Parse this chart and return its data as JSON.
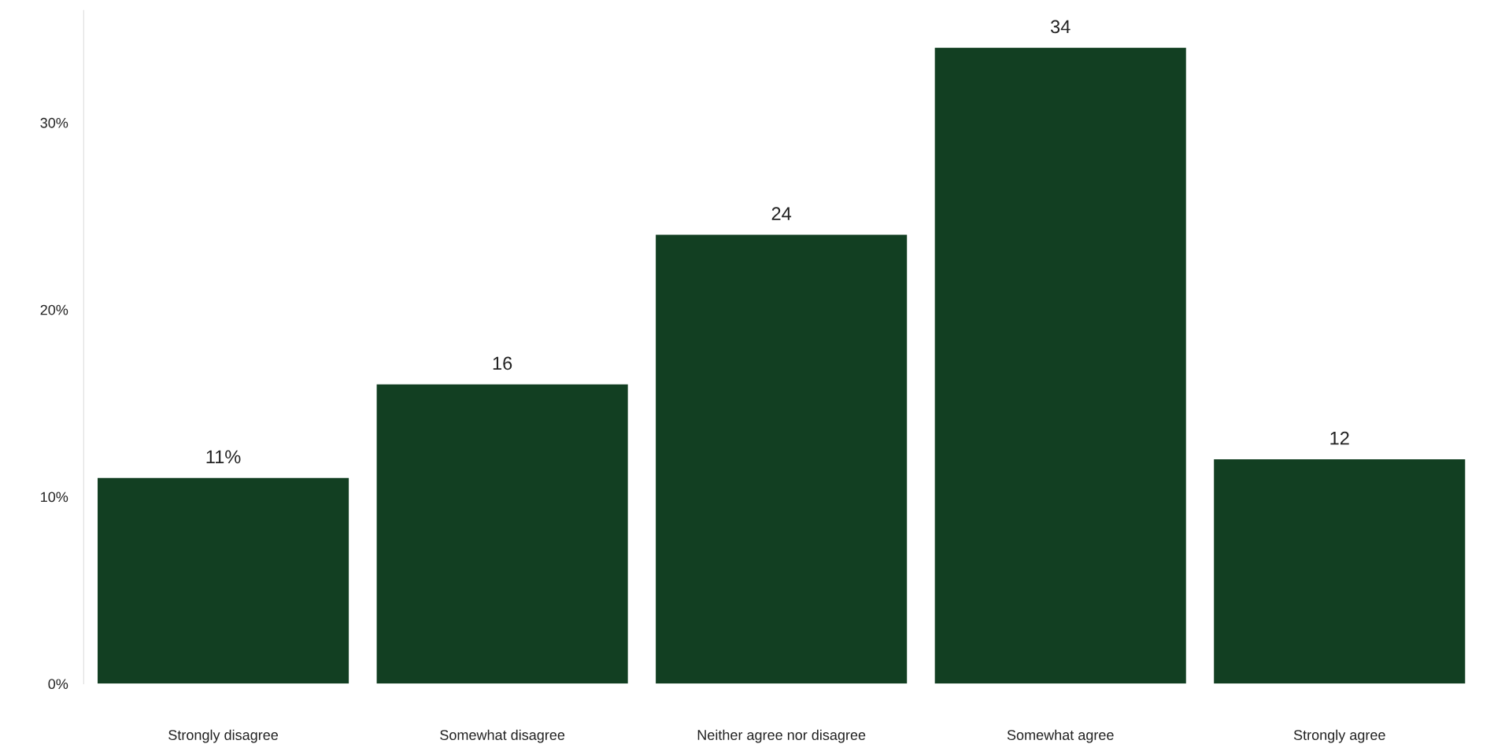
{
  "chart_data": {
    "type": "bar",
    "categories": [
      "Strongly disagree",
      "Somewhat disagree",
      "Neither agree nor disagree",
      "Somewhat agree",
      "Strongly agree"
    ],
    "values": [
      11,
      16,
      24,
      34,
      12
    ],
    "color": "#123f22",
    "value_labels": [
      "11%",
      "16",
      "24",
      "34",
      "12"
    ],
    "ylim": [
      0,
      36
    ],
    "yticks": [
      {
        "value": 0,
        "label": "0%"
      },
      {
        "value": 10,
        "label": "10%"
      },
      {
        "value": 20,
        "label": "20%"
      },
      {
        "value": 30,
        "label": "30%"
      }
    ],
    "grid": false,
    "legend": false
  }
}
